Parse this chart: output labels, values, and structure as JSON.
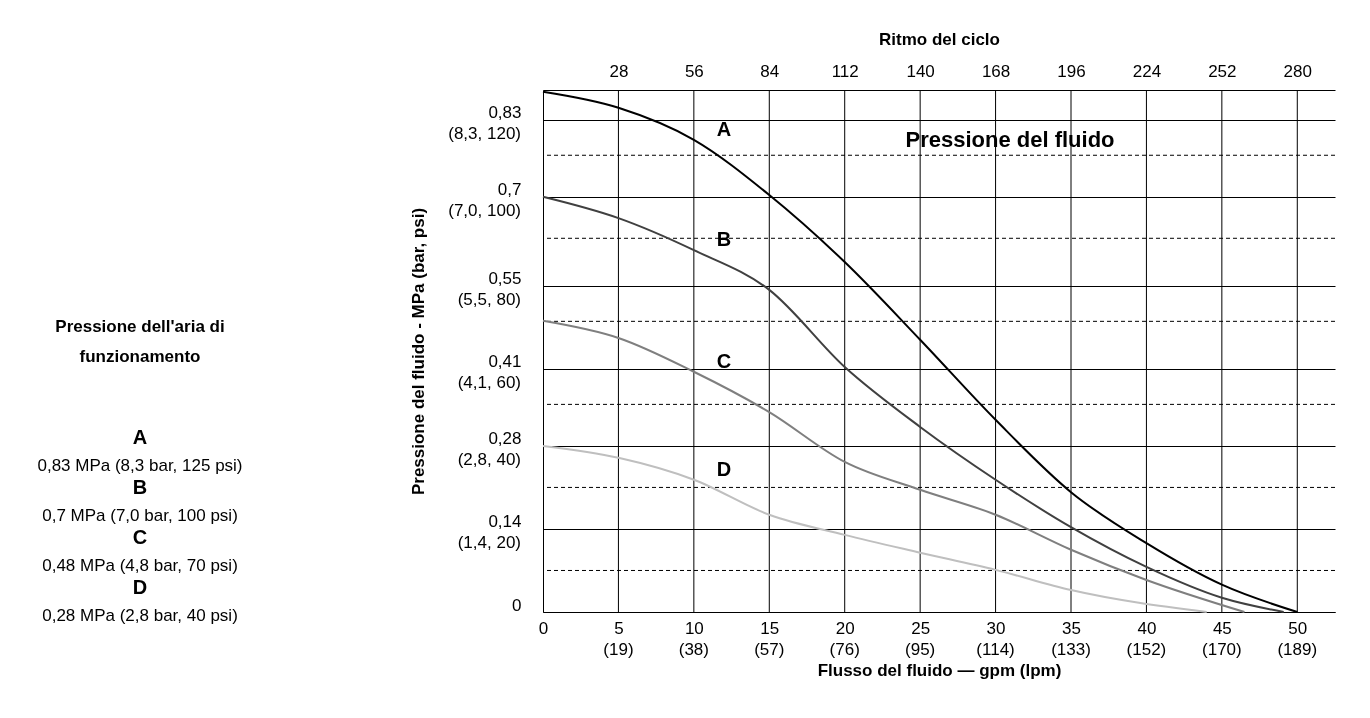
{
  "chart_data": {
    "type": "line",
    "title": "Pressione del fluido",
    "xlabel": "Flusso del fluido — gpm (lpm)",
    "ylabel": "Pressione del fluido - MPa (bar, psi)",
    "x2label": "Ritmo del ciclo",
    "legend_title": "Pressione dell'aria di funzionamento",
    "legend": "left",
    "grid": true,
    "line_style": "solid",
    "marker": "none",
    "xlim": [
      0,
      52.5
    ],
    "ylim": [
      0,
      0.88
    ],
    "x2lim": [
      0,
      294
    ],
    "xticks": [
      0,
      5,
      10,
      15,
      20,
      25,
      30,
      35,
      40,
      45,
      50
    ],
    "x2ticks": [
      28,
      56,
      84,
      112,
      140,
      168,
      196,
      224,
      252,
      280
    ],
    "yticks": [
      0,
      {
        "value": 0.14,
        "label": "0,14"
      },
      {
        "value": 0.28,
        "label": "0,28"
      },
      {
        "value": 0.41,
        "label": "0,41"
      },
      {
        "value": 0.55,
        "label": "0,55"
      },
      {
        "value": 0.7,
        "label": "0,7"
      },
      {
        "value": 0.83,
        "label": "0,83"
      }
    ],
    "ref_lines": [
      {
        "axis": "y",
        "value": 0.07,
        "line_style": "dashed",
        "color": "#000000"
      },
      {
        "axis": "y",
        "value": 0.21,
        "line_style": "dashed",
        "color": "#000000"
      },
      {
        "axis": "y",
        "value": 0.35,
        "line_style": "dashed",
        "color": "#000000"
      },
      {
        "axis": "y",
        "value": 0.49,
        "line_style": "dashed",
        "color": "#000000"
      },
      {
        "axis": "y",
        "value": 0.63,
        "line_style": "dashed",
        "color": "#000000"
      },
      {
        "axis": "y",
        "value": 0.77,
        "line_style": "dashed",
        "color": "#000000"
      }
    ],
    "annotations": [
      "0,83 MPa (8,3 bar, 125 psi)",
      "0,7 MPa (7,0 bar, 100 psi)",
      "0,48 MPa (4,8 bar, 70 psi)",
      "0,28 MPa (2,8 bar, 40 psi)",
      "(19)",
      "(38)",
      "(57)",
      "(76)",
      "(95)",
      "(114)",
      "(133)",
      "(152)",
      "(170)",
      "(189)",
      "(1,4, 20)",
      "(2,8, 40)",
      "(4,1, 60)",
      "(5,5, 80)",
      "(7,0, 100)",
      "(8,3, 120)"
    ],
    "series": [
      {
        "name": "A",
        "color": "#000000",
        "x": [
          0,
          5,
          10,
          15,
          20,
          25,
          30,
          35,
          40,
          45,
          50
        ],
        "values": [
          0.877,
          0.85,
          0.796,
          0.703,
          0.59,
          0.459,
          0.324,
          0.202,
          0.116,
          0.046,
          0
        ]
      },
      {
        "name": "B",
        "color": "#404040",
        "x": [
          0,
          5,
          10,
          15,
          20,
          25,
          30,
          35,
          40,
          45,
          49.1
        ],
        "values": [
          0.7,
          0.664,
          0.61,
          0.543,
          0.413,
          0.312,
          0.223,
          0.143,
          0.076,
          0.024,
          0
        ]
      },
      {
        "name": "C",
        "color": "#7f7f7f",
        "x": [
          0,
          5,
          10,
          15,
          20,
          25,
          30,
          35,
          40,
          46.5
        ],
        "values": [
          0.491,
          0.462,
          0.405,
          0.337,
          0.253,
          0.206,
          0.164,
          0.105,
          0.054,
          0
        ]
      },
      {
        "name": "D",
        "color": "#bfbfbf",
        "x": [
          0,
          5,
          10,
          15,
          20,
          25,
          30,
          35,
          44
        ],
        "values": [
          0.28,
          0.26,
          0.223,
          0.164,
          0.13,
          0.1,
          0.071,
          0.037,
          0
        ]
      }
    ]
  }
}
